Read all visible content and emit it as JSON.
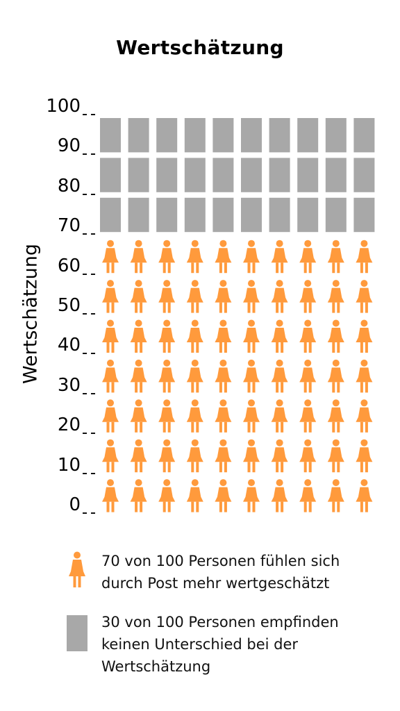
{
  "title": "Wertschätzung",
  "chart_data": {
    "type": "pictograph",
    "title": "Wertschätzung",
    "ylabel": "Wertschätzung",
    "ylim": [
      0,
      100
    ],
    "y_ticks": [
      "0",
      "10",
      "20",
      "30",
      "40",
      "50",
      "60",
      "70",
      "80",
      "90",
      "100"
    ],
    "columns": 10,
    "unit": 1,
    "series": [
      {
        "name": "70 von 100 Personen fühlen sich durch Post mehr wertgeschätzt",
        "value": 70,
        "icon": "person-icon",
        "color": "#FF9A3C"
      },
      {
        "name": "30 von 100 Personen empfinden keinen Unterschied bei der Wertschätzung",
        "value": 30,
        "icon": "square-block",
        "color": "#A8A8A8"
      }
    ]
  },
  "legend": [
    {
      "line1": "70 von 100 Personen fühlen sich",
      "line2": "durch Post mehr wertgeschätzt",
      "line3": ""
    },
    {
      "line1": "30 von 100 Personen empfinden",
      "line2": "keinen Unterschied bei der",
      "line3": "Wertschätzung"
    }
  ],
  "colors": {
    "person": "#FF9A3C",
    "gray": "#A8A8A8"
  }
}
